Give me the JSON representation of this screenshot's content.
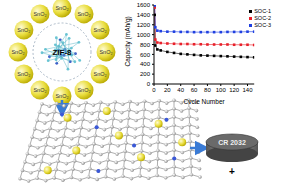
{
  "diagram": {
    "particle_label": "SnO₂",
    "particle_count": 12,
    "center_label": "ZIF-8",
    "cell_label": "CR 2032",
    "cell_sign": "+"
  },
  "chart_data": {
    "type": "line",
    "x_label": "Cycle Number",
    "y_label": "Capacity (mAh/g)",
    "x": [
      1,
      2,
      5,
      10,
      20,
      30,
      40,
      50,
      60,
      70,
      80,
      90,
      100,
      110,
      120,
      130,
      140,
      150
    ],
    "xlim": [
      0,
      150
    ],
    "xticks": [
      0,
      20,
      40,
      60,
      80,
      100,
      120,
      140
    ],
    "ylim": [
      0,
      1600
    ],
    "yticks": [
      0,
      200,
      400,
      600,
      800,
      1000,
      1200,
      1400,
      1600
    ],
    "legend": "top-right",
    "marker": "square",
    "series": [
      {
        "name": "SOC-1",
        "color": "#000000",
        "values": [
          1400,
          780,
          700,
          680,
          650,
          630,
          610,
          600,
          590,
          580,
          575,
          570,
          565,
          560,
          555,
          550,
          545,
          540
        ]
      },
      {
        "name": "SOC-2",
        "color": "#e8202a",
        "values": [
          1550,
          900,
          840,
          830,
          820,
          815,
          810,
          810,
          805,
          805,
          800,
          800,
          800,
          800,
          795,
          795,
          795,
          790
        ]
      },
      {
        "name": "SOC-3",
        "color": "#1f3fe0",
        "values": [
          1590,
          1150,
          1080,
          1070,
          1060,
          1060,
          1055,
          1055,
          1050,
          1050,
          1050,
          1050,
          1050,
          1055,
          1055,
          1055,
          1060,
          1060
        ]
      }
    ]
  }
}
